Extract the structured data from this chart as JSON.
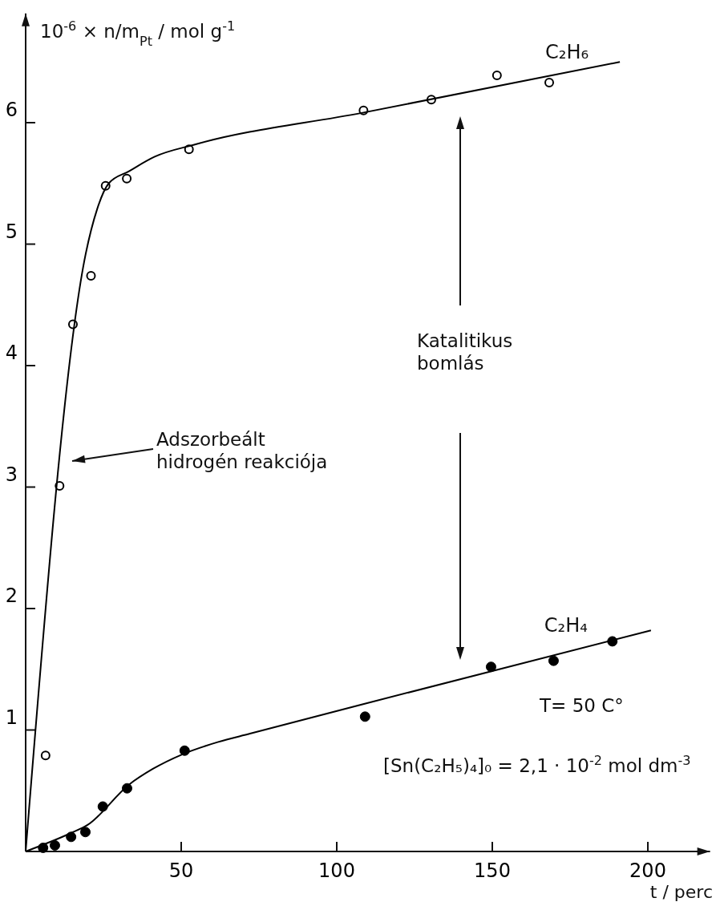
{
  "chart_data": {
    "type": "scatter",
    "ylabel": "10$^{-6}$ × n/m$_{Pt}$ / mol g$^{-1}$",
    "xlabel": "t / perc",
    "xlim": [
      0,
      220
    ],
    "ylim": [
      0,
      6.9
    ],
    "xticks": [
      50,
      100,
      150,
      200
    ],
    "yticks": [
      1,
      2,
      3,
      4,
      5,
      6
    ],
    "grid": false,
    "series": [
      {
        "name": "C₂H₆",
        "marker": "circle-open",
        "color": "#000000",
        "x": [
          6.4,
          10.9,
          15.2,
          21,
          25.7,
          32.5,
          52.5,
          108.6,
          130.4,
          151.5,
          168.3
        ],
        "values": [
          0.79,
          3.01,
          4.34,
          4.74,
          5.48,
          5.54,
          5.78,
          6.1,
          6.19,
          6.39,
          6.33
        ]
      },
      {
        "type": "line",
        "line_style": "solid",
        "color": "#000000",
        "x": [
          0,
          19.3,
          23,
          26.7,
          33.2,
          41.5,
          54.4,
          108,
          191
        ],
        "values": [
          0,
          4.92,
          5.29,
          5.5,
          5.6,
          5.72,
          5.82,
          6.08,
          6.5
        ]
      },
      {
        "name": "C₂H₄",
        "marker": "circle",
        "color": "#000000",
        "x": [
          5.6,
          9.4,
          14.6,
          19.2,
          24.8,
          32.6,
          51.1,
          109.1,
          149.6,
          169.7,
          188.6
        ],
        "values": [
          0.03,
          0.05,
          0.12,
          0.16,
          0.37,
          0.52,
          0.83,
          1.11,
          1.52,
          1.57,
          1.73
        ]
      },
      {
        "type": "line",
        "line_style": "solid",
        "color": "#000000",
        "x": [
          0,
          14.4,
          20,
          33.2,
          40.9,
          50.4,
          61.7,
          72.1,
          108,
          201
        ],
        "values": [
          0,
          0.15,
          0.22,
          0.55,
          0.68,
          0.8,
          0.9,
          0.97,
          1.21,
          1.82
        ]
      }
    ],
    "annotations": [
      "Adszorbeált\nhidrogén reakciója",
      "Katalitikus\nbomlás",
      "T= 50 C°",
      "[Sn(C₂H₅)₄]₀ = 2,1 · 10$^{-2}$ mol dm$^{-3}$"
    ]
  }
}
